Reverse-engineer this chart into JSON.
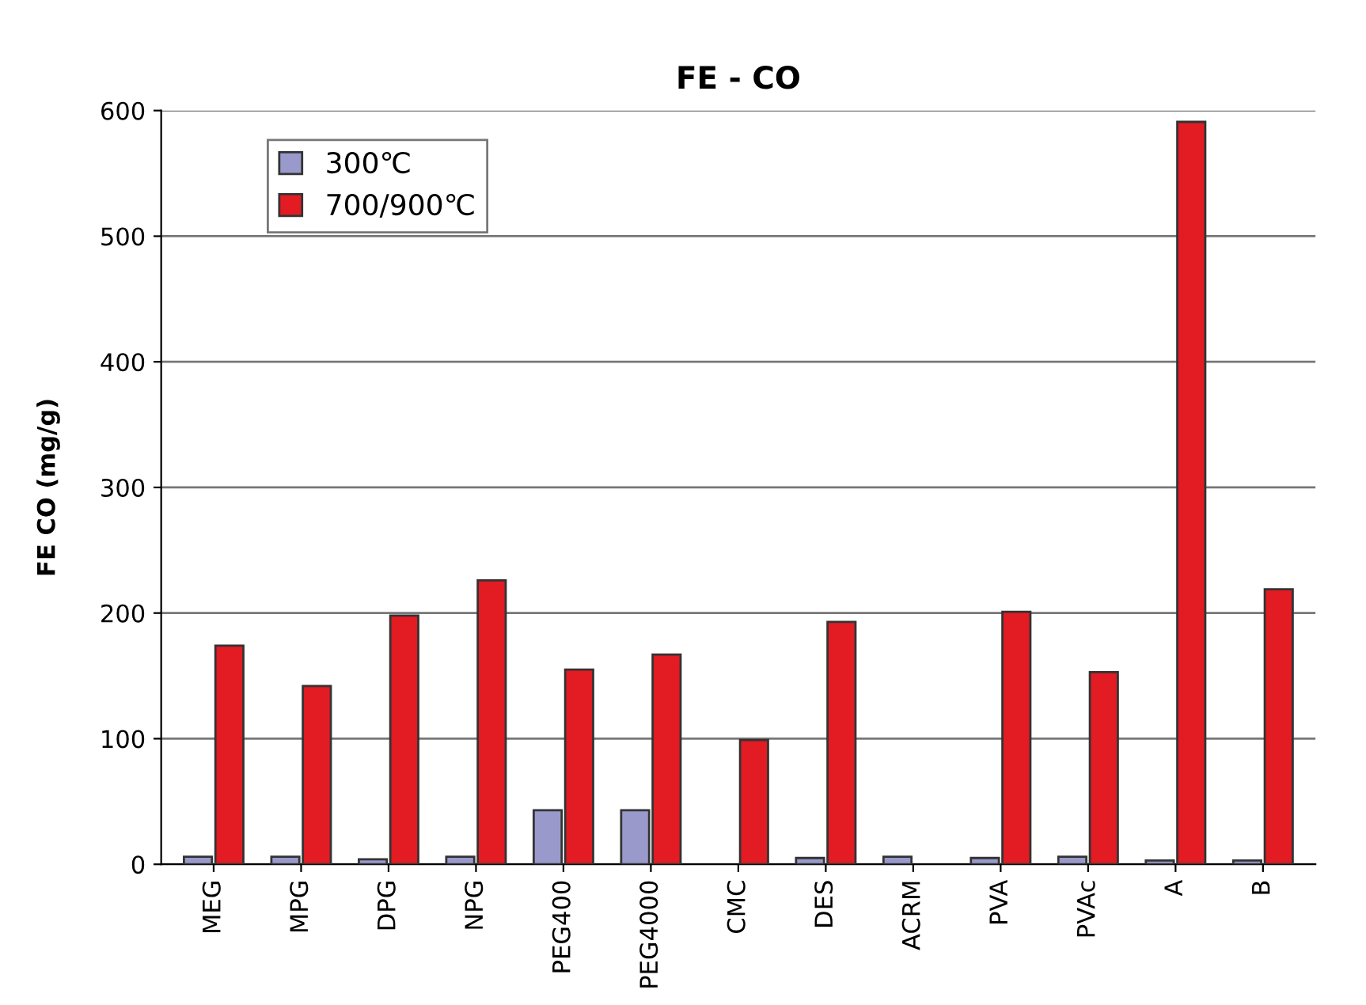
{
  "chart_data": {
    "type": "bar",
    "title": "FE - CO",
    "ylabel": "FE CO (mg/g)",
    "categories": [
      "MEG",
      "MPG",
      "DPG",
      "NPG",
      "PEG400",
      "PEG4000",
      "CMC",
      "DES",
      "ACRM",
      "PVA",
      "PVAc",
      "A",
      "B"
    ],
    "series": [
      {
        "name": "300℃",
        "color": "#9999cc",
        "values": [
          6,
          6,
          4,
          6,
          43,
          43,
          null,
          5,
          6,
          5,
          6,
          3,
          3
        ]
      },
      {
        "name": "700/900℃",
        "color": "#e31b23",
        "values": [
          174,
          142,
          198,
          226,
          155,
          167,
          99,
          193,
          null,
          201,
          153,
          591,
          219
        ]
      }
    ],
    "ylim": [
      0,
      600
    ],
    "yticks": [
      0,
      100,
      200,
      300,
      400,
      500,
      600
    ],
    "grid": "y",
    "legend": "top left"
  }
}
